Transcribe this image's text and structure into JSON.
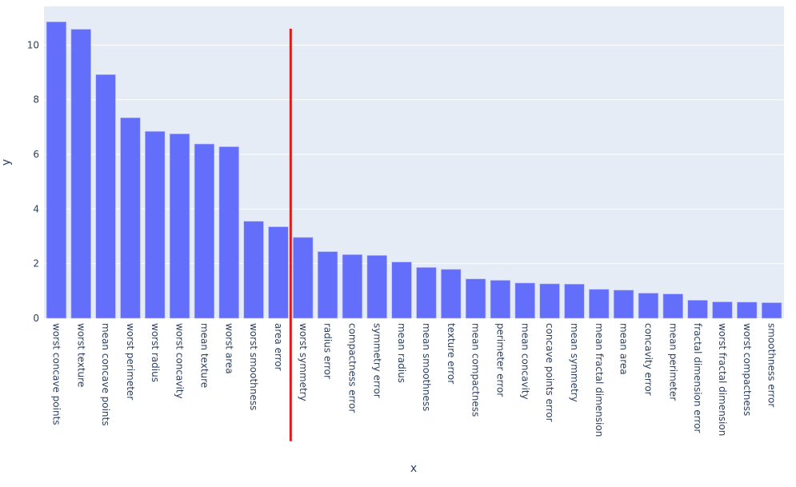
{
  "chart_data": {
    "type": "bar",
    "title": "",
    "xlabel": "x",
    "ylabel": "y",
    "ylim": [
      0,
      11.4
    ],
    "yticks": [
      0,
      2,
      4,
      6,
      8,
      10
    ],
    "grid": true,
    "bar_color": "#636efa",
    "background_color": "#e5ecf6",
    "categories": [
      "worst concave points",
      "worst texture",
      "mean concave points",
      "worst perimeter",
      "worst radius",
      "worst concavity",
      "mean texture",
      "worst area",
      "worst smoothness",
      "area error",
      "worst symmetry",
      "radius error",
      "compactness error",
      "symmetry error",
      "mean radius",
      "mean smoothness",
      "texture error",
      "mean compactness",
      "perimeter error",
      "mean concavity",
      "concave points error",
      "mean symmetry",
      "mean fractal dimension",
      "mean area",
      "concavity error",
      "mean perimeter",
      "fractal dimension error",
      "worst fractal dimension",
      "worst compactness",
      "smoothness error"
    ],
    "values": [
      10.85,
      10.58,
      8.92,
      7.34,
      6.84,
      6.75,
      6.38,
      6.28,
      3.55,
      3.35,
      2.96,
      2.44,
      2.33,
      2.3,
      2.06,
      1.86,
      1.79,
      1.44,
      1.39,
      1.29,
      1.26,
      1.25,
      1.06,
      1.03,
      0.92,
      0.89,
      0.66,
      0.6,
      0.59,
      0.57
    ],
    "threshold_line": {
      "color": "#e31a1c",
      "between_categories": [
        "area error",
        "worst symmetry"
      ],
      "y_range": [
        -4.5,
        10.6
      ]
    }
  }
}
